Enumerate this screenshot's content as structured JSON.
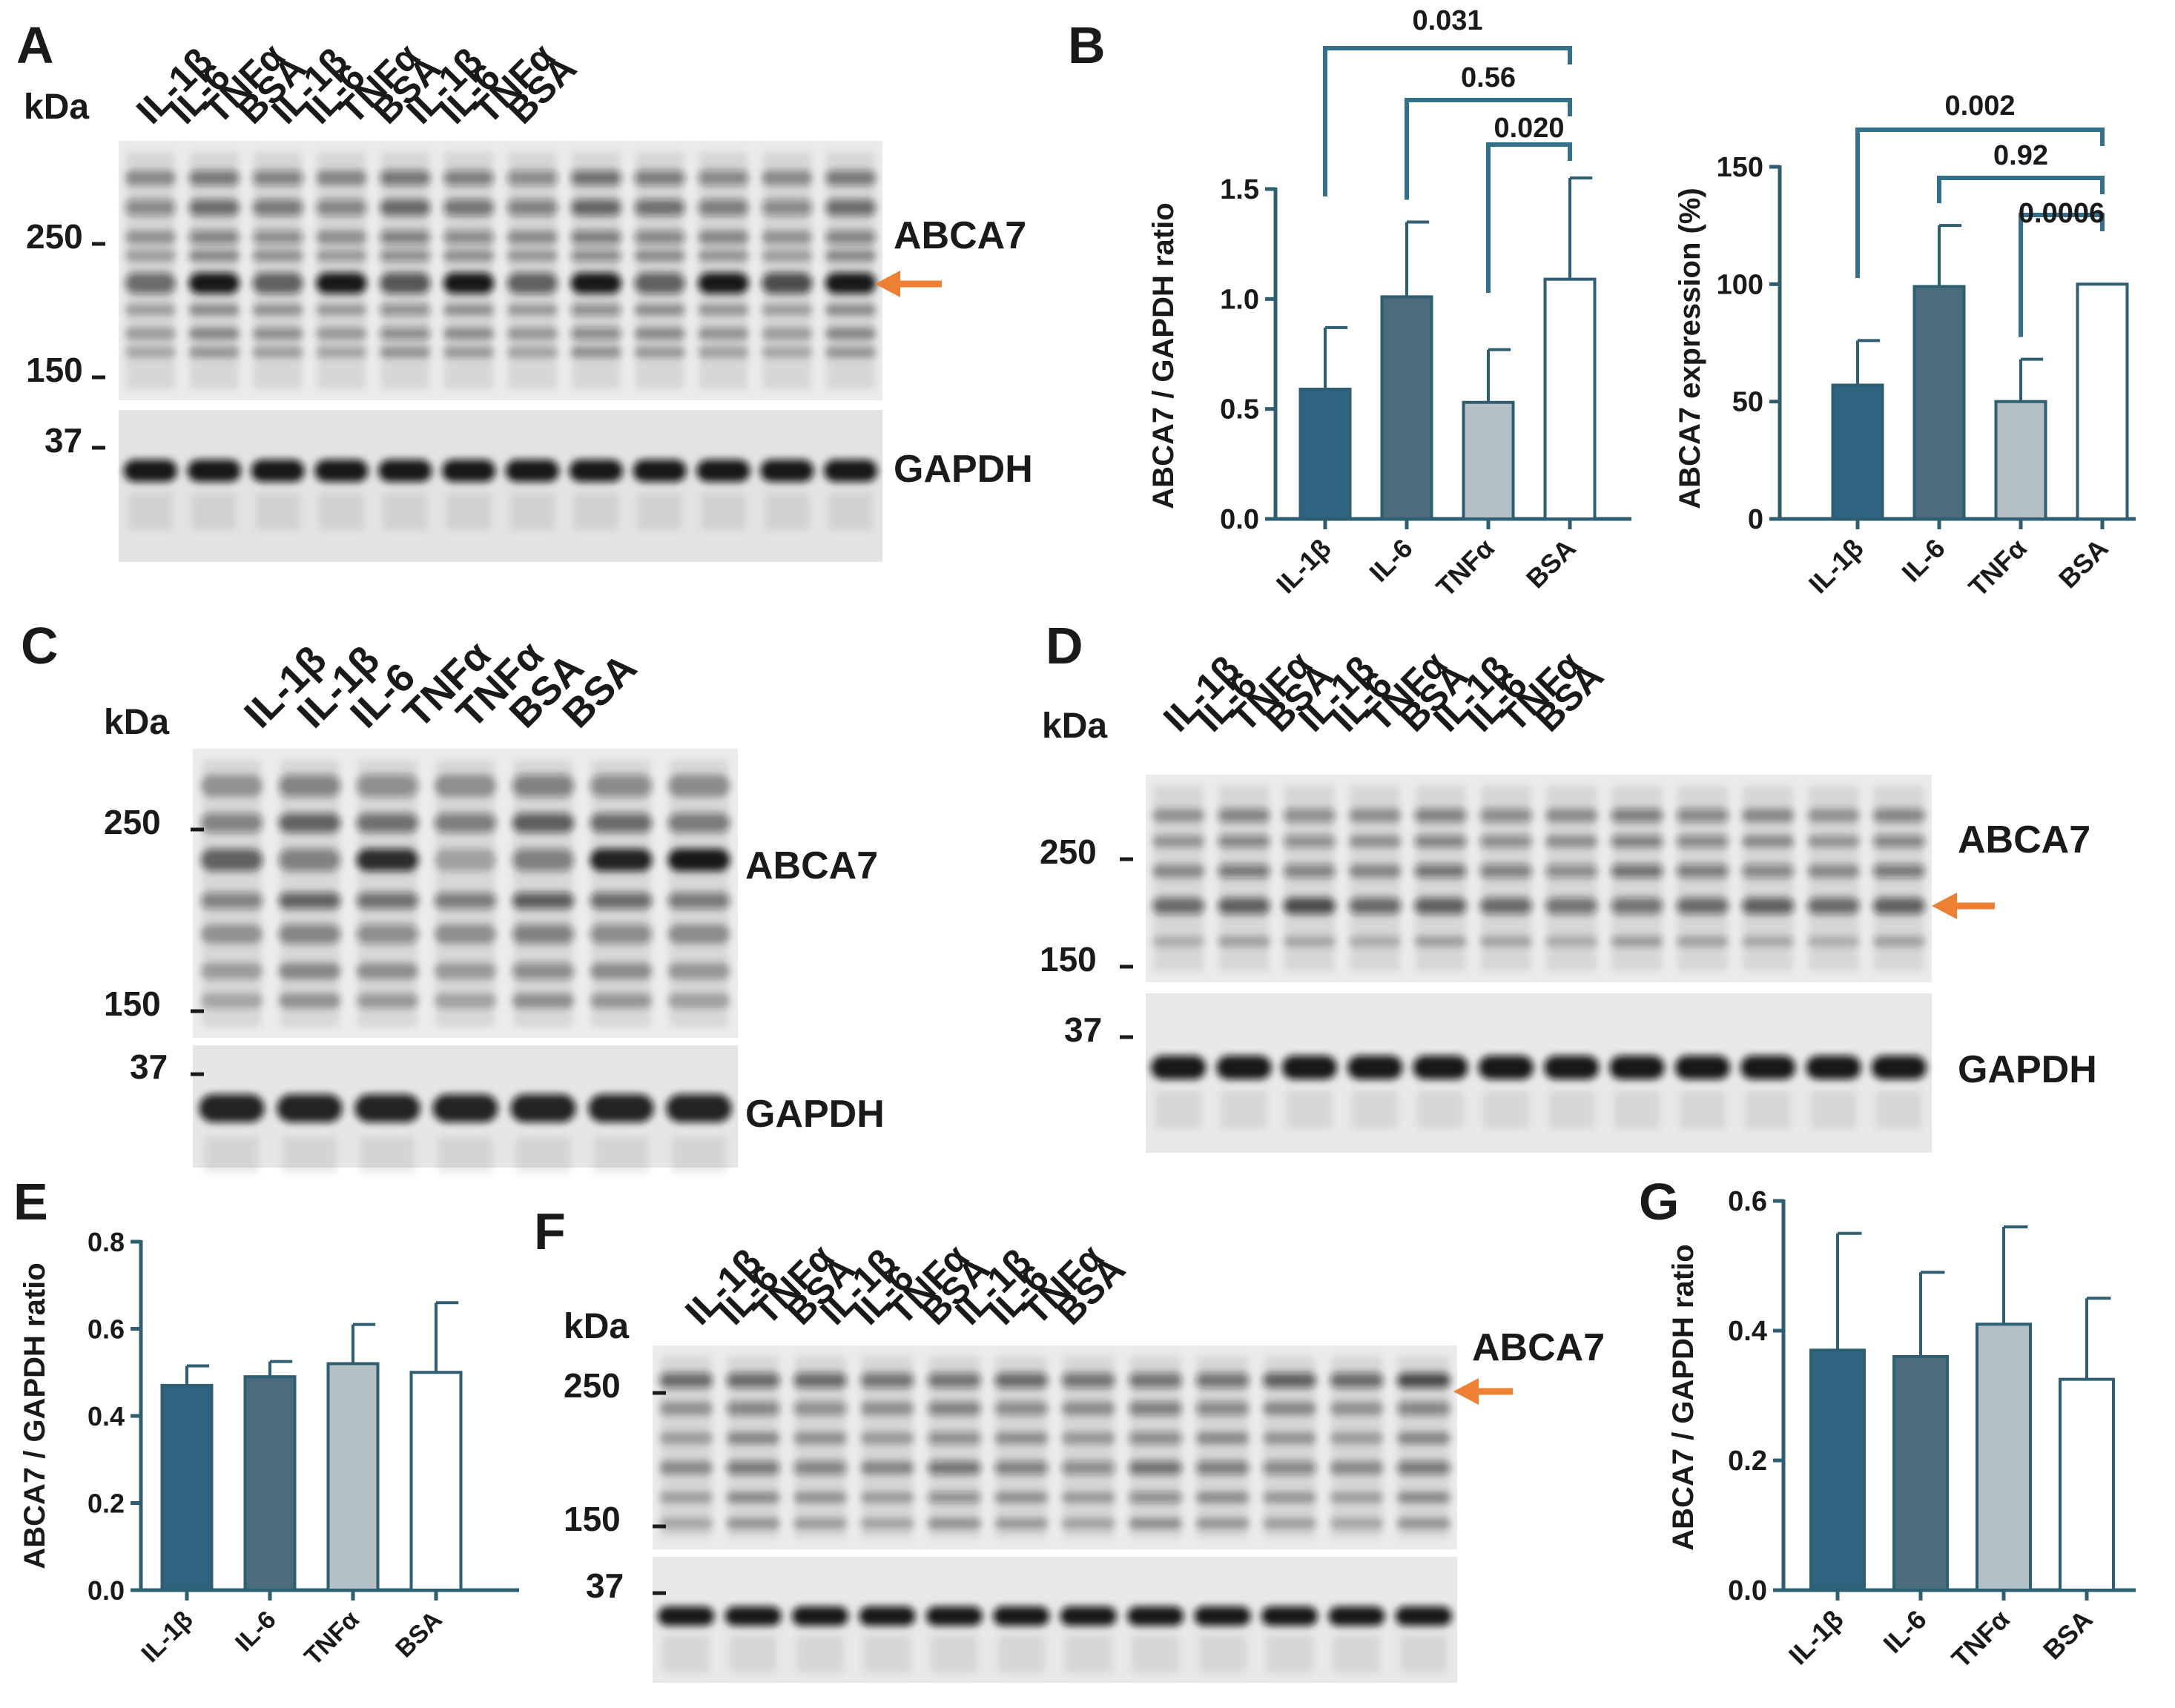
{
  "colors": {
    "il1b": "#2e6480",
    "il6": "#4c6b7c",
    "tnfa": "#b4bfc6",
    "bsa": "#ffffff",
    "axis": "#2e5e72",
    "bracket": "#35708a",
    "arrow": "#ee8034",
    "band_dark": "#1a1a1a"
  },
  "panels": {
    "A": {
      "letter": "A",
      "kda": "kDa",
      "lanes": [
        "IL-1β",
        "IL-6",
        "TNFα",
        "BSA",
        "IL-1β",
        "IL-6",
        "TNFα",
        "BSA",
        "IL-1β",
        "IL-6",
        "TNFα",
        "BSA"
      ],
      "markers": [
        "250",
        "150",
        "37"
      ],
      "labels": {
        "top": "ABCA7",
        "bottom": "GAPDH"
      },
      "arrow": true
    },
    "C": {
      "letter": "C",
      "kda": "kDa",
      "lanes": [
        "IL-1β",
        "IL-1β",
        "IL-6",
        "TNFα",
        "TNFα",
        "BSA",
        "BSA"
      ],
      "markers": [
        "250",
        "150",
        "37"
      ],
      "labels": {
        "top": "ABCA7",
        "bottom": "GAPDH"
      },
      "arrow": false
    },
    "D": {
      "letter": "D",
      "kda": "kDa",
      "lanes": [
        "IL-1β",
        "IL-6",
        "TNFα",
        "BSA",
        "IL-1β",
        "IL-6",
        "TNFα",
        "BSA",
        "IL-1β",
        "IL-6",
        "TNFα",
        "BSA"
      ],
      "markers": [
        "250",
        "150",
        "37"
      ],
      "labels": {
        "top": "ABCA7",
        "bottom": "GAPDH"
      },
      "arrow": true
    },
    "F": {
      "letter": "F",
      "kda": "kDa",
      "lanes": [
        "IL-1β",
        "IL-6",
        "TNFα",
        "BSA",
        "IL-1β",
        "IL-6",
        "TNFα",
        "BSA",
        "IL-1β",
        "IL-6",
        "TNFα",
        "BSA"
      ],
      "markers": [
        "250",
        "150",
        "37"
      ],
      "labels": {
        "top": "ABCA7",
        "bottom": ""
      },
      "arrow": true
    }
  },
  "chart_data": [
    {
      "panel": "B",
      "letter": "B",
      "type": "bar",
      "categories": [
        "IL-1β",
        "IL-6",
        "TNFα",
        "BSA"
      ],
      "values": [
        0.59,
        1.01,
        0.53,
        1.09
      ],
      "errors": [
        0.28,
        0.34,
        0.24,
        0.46
      ],
      "ylabel": "ABCA7 / GAPDH ratio",
      "ylim": [
        0,
        1.5
      ],
      "yticks": [
        "0.0",
        "0.5",
        "1.0",
        "1.5"
      ],
      "comparisons": [
        {
          "from": "IL-1β",
          "to": "BSA",
          "p": "0.031"
        },
        {
          "from": "IL-6",
          "to": "BSA",
          "p": "0.56"
        },
        {
          "from": "TNFα",
          "to": "BSA",
          "p": "0.020"
        }
      ]
    },
    {
      "panel": "B2",
      "letter": "",
      "type": "bar",
      "categories": [
        "IL-1β",
        "IL-6",
        "TNFα",
        "BSA"
      ],
      "values": [
        57,
        99,
        50,
        100
      ],
      "errors": [
        19,
        26,
        18,
        0
      ],
      "ylabel": "ABCA7 expression (%)",
      "ylim": [
        0,
        150
      ],
      "yticks": [
        "0",
        "50",
        "100",
        "150"
      ],
      "comparisons": [
        {
          "from": "IL-1β",
          "to": "BSA",
          "p": "0.002"
        },
        {
          "from": "IL-6",
          "to": "BSA",
          "p": "0.92"
        },
        {
          "from": "TNFα",
          "to": "BSA",
          "p": "0.0006"
        }
      ]
    },
    {
      "panel": "E",
      "letter": "E",
      "type": "bar",
      "categories": [
        "IL-1β",
        "IL-6",
        "TNFα",
        "BSA"
      ],
      "values": [
        0.47,
        0.49,
        0.52,
        0.5
      ],
      "errors": [
        0.045,
        0.035,
        0.09,
        0.16
      ],
      "ylabel": "ABCA7 / GAPDH ratio",
      "ylim": [
        0,
        0.8
      ],
      "yticks": [
        "0.0",
        "0.2",
        "0.4",
        "0.6",
        "0.8"
      ],
      "comparisons": []
    },
    {
      "panel": "G",
      "letter": "G",
      "type": "bar",
      "categories": [
        "IL-1β",
        "IL-6",
        "TNFα",
        "BSA"
      ],
      "values": [
        0.37,
        0.36,
        0.41,
        0.325
      ],
      "errors": [
        0.18,
        0.13,
        0.15,
        0.125
      ],
      "ylabel": "ABCA7 / GAPDH ratio",
      "ylim": [
        0,
        0.6
      ],
      "yticks": [
        "0.0",
        "0.2",
        "0.4",
        "0.6"
      ],
      "comparisons": []
    }
  ]
}
